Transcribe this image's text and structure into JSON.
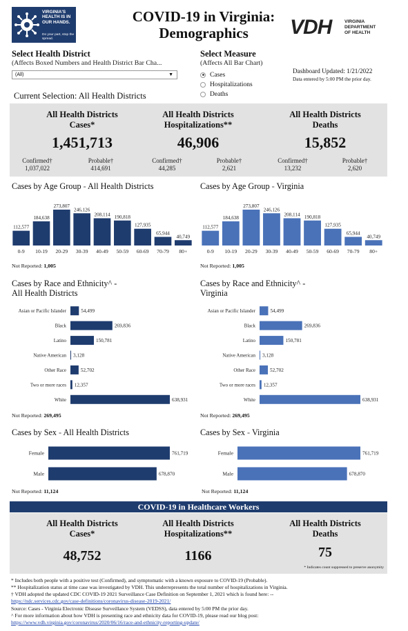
{
  "logo": {
    "left_text": "VIRGINIA'S HEALTH IS IN OUR HANDS.",
    "left_sub": "Do your part, stop the spread.",
    "vdh": "VDH",
    "vdh_text": "VIRGINIA DEPARTMENT OF HEALTH"
  },
  "title": {
    "line1": "COVID-19 in Virginia:",
    "line2": "Demographics"
  },
  "filters": {
    "district_title": "Select Health District",
    "district_sub": "(Affects Boxed Numbers and Health District Bar Cha...",
    "district_value": "(All)",
    "measure_title": "Select Measure",
    "measure_sub": "(Affects All Bar Chart)",
    "measure_options": [
      "Cases",
      "Hospitalizations",
      "Deaths"
    ],
    "measure_selected": "Cases"
  },
  "updated": {
    "line1": "Dashboard Updated: 1/21/2022",
    "line2": "Data entered by 5:00 PM the prior day."
  },
  "current_selection": "Current Selection: All Health Districts",
  "summary": [
    {
      "title1": "All Health Districts",
      "title2": "Cases*",
      "value": "1,451,713",
      "sub": [
        {
          "label": "Confirmed†",
          "value": "1,037,022"
        },
        {
          "label": "Probable†",
          "value": "414,691"
        }
      ]
    },
    {
      "title1": "All Health Districts",
      "title2": "Hospitalizations**",
      "value": "46,906",
      "sub": [
        {
          "label": "Confirmed†",
          "value": "44,285"
        },
        {
          "label": "Probable†",
          "value": "2,621"
        }
      ]
    },
    {
      "title1": "All Health Districts",
      "title2": "Deaths",
      "value": "15,852",
      "sub": [
        {
          "label": "Confirmed†",
          "value": "13,232"
        },
        {
          "label": "Probable†",
          "value": "2,620"
        }
      ]
    }
  ],
  "sections": {
    "age_left": {
      "prefix": "Cases by Age Group",
      "dash": " - ",
      "suffix": "All Health Districts"
    },
    "age_right": {
      "prefix": "Cases by Age Group",
      "dash": " - ",
      "suffix": "Virginia"
    },
    "race_left": {
      "line1": "Cases by Race and Ethnicity^ -",
      "line2": "All Health Districts"
    },
    "race_right": {
      "line1": "Cases by Race and Ethnicity^ -",
      "line2": "Virginia"
    },
    "sex_left": {
      "prefix": "Cases by Sex",
      "dash": " - ",
      "suffix": "All Health Districts"
    },
    "sex_right": {
      "prefix": "Cases by Sex",
      "dash": " - ",
      "suffix": "Virginia"
    }
  },
  "not_reported": {
    "label": "Not Reported:",
    "age": "1,005",
    "race": "269,495",
    "sex": "11,124"
  },
  "colors": {
    "dark_bar": "#1f3c6e",
    "light_bar": "#4a72b8",
    "panel": "#e2e2e2",
    "banner": "#1f3c6e"
  },
  "chart_data": [
    {
      "id": "age_left",
      "type": "bar",
      "title": "Cases by Age Group - All Health Districts",
      "categories": [
        "0-9",
        "10-19",
        "20-29",
        "30-39",
        "40-49",
        "50-59",
        "60-69",
        "70-79",
        "80+"
      ],
      "values": [
        112577,
        184638,
        273807,
        246126,
        208114,
        190818,
        127935,
        65944,
        40749
      ],
      "labels": [
        "112,577",
        "184,638",
        "273,807",
        "246,126",
        "208,114",
        "190,818",
        "127,935",
        "65,944",
        "40,749"
      ],
      "ylim": [
        0,
        273807
      ],
      "color": "#1f3c6e"
    },
    {
      "id": "age_right",
      "type": "bar",
      "title": "Cases by Age Group - Virginia",
      "categories": [
        "0-9",
        "10-19",
        "20-29",
        "30-39",
        "40-49",
        "50-59",
        "60-69",
        "70-79",
        "80+"
      ],
      "values": [
        112577,
        184638,
        273807,
        246126,
        208114,
        190818,
        127935,
        65944,
        40749
      ],
      "labels": [
        "112,577",
        "184,638",
        "273,807",
        "246,126",
        "208,114",
        "190,818",
        "127,935",
        "65,944",
        "40,749"
      ],
      "ylim": [
        0,
        273807
      ],
      "color": "#4a72b8"
    },
    {
      "id": "race_left",
      "type": "bar",
      "orientation": "horizontal",
      "title": "Cases by Race and Ethnicity^ - All Health Districts",
      "categories": [
        "Asian or Pacific Islander",
        "Black",
        "Latino",
        "Native American",
        "Other Race",
        "Two or more races",
        "White"
      ],
      "values": [
        54499,
        269836,
        150781,
        3128,
        52702,
        12357,
        638931
      ],
      "labels": [
        "54,499",
        "269,836",
        "150,781",
        "3,128",
        "52,702",
        "12,357",
        "638,931"
      ],
      "xlim": [
        0,
        638931
      ],
      "color": "#1f3c6e"
    },
    {
      "id": "race_right",
      "type": "bar",
      "orientation": "horizontal",
      "title": "Cases by Race and Ethnicity^ - Virginia",
      "categories": [
        "Asian or Pacific Islander",
        "Black",
        "Latino",
        "Native American",
        "Other Race",
        "Two or more races",
        "White"
      ],
      "values": [
        54499,
        269836,
        150781,
        3128,
        52702,
        12357,
        638931
      ],
      "labels": [
        "54,499",
        "269,836",
        "150,781",
        "3,128",
        "52,702",
        "12,357",
        "638,931"
      ],
      "xlim": [
        0,
        638931
      ],
      "color": "#4a72b8"
    },
    {
      "id": "sex_left",
      "type": "bar",
      "orientation": "horizontal",
      "title": "Cases by Sex - All Health Districts",
      "categories": [
        "Female",
        "Male"
      ],
      "values": [
        761719,
        678870
      ],
      "labels": [
        "761,719",
        "678,870"
      ],
      "xlim": [
        0,
        761719
      ],
      "color": "#1f3c6e"
    },
    {
      "id": "sex_right",
      "type": "bar",
      "orientation": "horizontal",
      "title": "Cases by Sex - Virginia",
      "categories": [
        "Female",
        "Male"
      ],
      "values": [
        761719,
        678870
      ],
      "labels": [
        "761,719",
        "678,870"
      ],
      "xlim": [
        0,
        761719
      ],
      "color": "#4a72b8"
    }
  ],
  "healthcare": {
    "banner": "COVID-19 in Healthcare Workers",
    "stats": [
      {
        "title1": "All Health Districts",
        "title2": "Cases*",
        "value": "48,752"
      },
      {
        "title1": "All Health Districts",
        "title2": "Hospitalizations**",
        "value": "1166"
      },
      {
        "title1": "All Health Districts",
        "title2": "Deaths",
        "value": "75"
      }
    ],
    "suppress_note": "* Indicates count suppressed to preserve anonymity"
  },
  "footnotes": {
    "f1": "* Includes both people with a positive test (Confirmed), and symptomatic with a known exposure to COVID-19 (Probable).",
    "f2": "** Hospitalization status at time case was investigated by VDH. This underrepresents the total number of hospitalizations in Virginia.",
    "f3": "† VDH adopted the updated CDC COVID-19 2021 Surveillance Case Definition on September 1, 2021 which is found here: --",
    "f3_link": "https://ndc.services.cdc.gov/case-definitions/coronavirus-disease-2019-2021/",
    "f4": "Source:  Cases - Virginia Electronic Disease Surveillance System (VEDSS), data entered by 5:00 PM the prior day.",
    "f5": "^ For more information about how VDH is presenting race and ethnicity data for COVID-19, please read our blog post:",
    "f5_link": "https://www.vdh.virginia.gov/coronavirus/2020/06/16/race-and-ethnicity-reporting-update/"
  }
}
